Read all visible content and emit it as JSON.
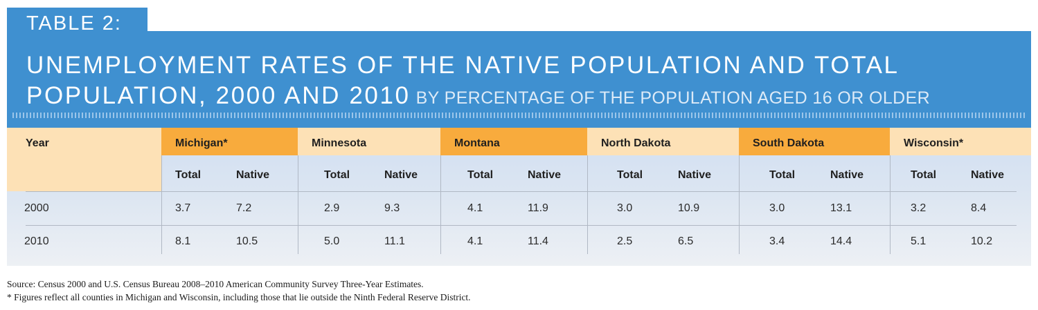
{
  "header": {
    "label": "TABLE 2:",
    "title_line1": "UNEMPLOYMENT RATES OF THE NATIVE POPULATION AND TOTAL",
    "title_line2": "POPULATION, 2000 AND 2010",
    "subtitle": "BY PERCENTAGE OF THE POPULATION AGED 16 OR OLDER"
  },
  "colors": {
    "banner": "#3f90d0",
    "header_light": "#fde1b6",
    "header_dark": "#f8ab3d",
    "table_bg": "#d1dff2"
  },
  "table": {
    "year_header": "Year",
    "sub_total": "Total",
    "sub_native": "Native",
    "states": [
      "Michigan*",
      "Minnesota",
      "Montana",
      "North Dakota",
      "South Dakota",
      "Wisconsin*"
    ],
    "rows": [
      {
        "year": "2000",
        "values": [
          "3.7",
          "7.2",
          "2.9",
          "9.3",
          "4.1",
          "11.9",
          "3.0",
          "10.9",
          "3.0",
          "13.1",
          "3.2",
          "8.4"
        ]
      },
      {
        "year": "2010",
        "values": [
          "8.1",
          "10.5",
          "5.0",
          "11.1",
          "4.1",
          "11.4",
          "2.5",
          "6.5",
          "3.4",
          "14.4",
          "5.1",
          "10.2"
        ]
      }
    ]
  },
  "notes": {
    "source": "Source: Census 2000 and U.S. Census Bureau 2008–2010 American Community Survey Three-Year Estimates.",
    "footnote": "* Figures reflect all counties in Michigan and Wisconsin, including those that lie outside the Ninth Federal Reserve District."
  }
}
